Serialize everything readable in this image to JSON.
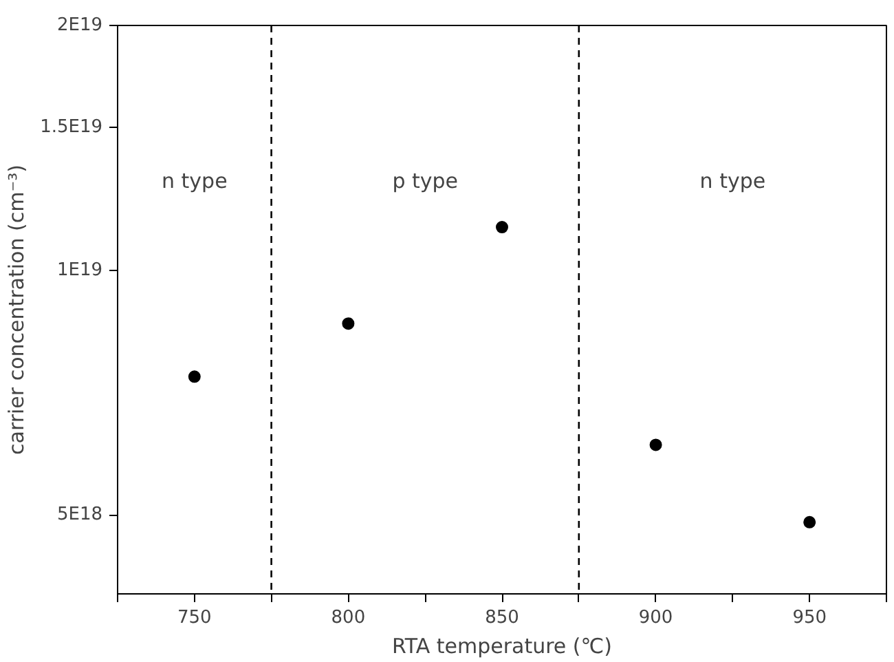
{
  "chart_data": {
    "type": "scatter",
    "x": [
      750,
      800,
      850,
      900,
      950
    ],
    "series": [
      {
        "color": "#000000",
        "values": [
          7.4e+18,
          8.6e+18,
          1.13e+19,
          6.1e+18,
          4.9e+18
        ]
      }
    ],
    "xlabel": "RTA temperature (℃)",
    "ylabel": "carrier concentration (cm⁻³)",
    "xlim": [
      725,
      975
    ],
    "xticks": [
      {
        "value": 725,
        "label": null
      },
      750,
      {
        "value": 775,
        "label": null
      },
      800,
      {
        "value": 825,
        "label": null
      },
      850,
      {
        "value": 875,
        "label": null
      },
      900,
      {
        "value": 925,
        "label": null
      },
      950,
      {
        "value": 975,
        "label": null
      }
    ],
    "ylim": [
      4e+18,
      2e+19
    ],
    "log": "y",
    "yticks": [
      {
        "value": 5e+18,
        "label": "5E18"
      },
      {
        "value": 1e+19,
        "label": "1E19"
      },
      {
        "value": 1.5e+19,
        "label": "1.5E19"
      },
      {
        "value": 2e+19,
        "label": "2E19"
      }
    ],
    "ref_lines": [
      {
        "axis": "x",
        "value": 775,
        "color": "#000000",
        "line_style": "dashed"
      },
      {
        "axis": "x",
        "value": 875,
        "color": "#000000",
        "line_style": "dashed"
      }
    ],
    "annotations": [
      "n type",
      "p type",
      "n type"
    ],
    "marker": "circle",
    "grid": false
  }
}
